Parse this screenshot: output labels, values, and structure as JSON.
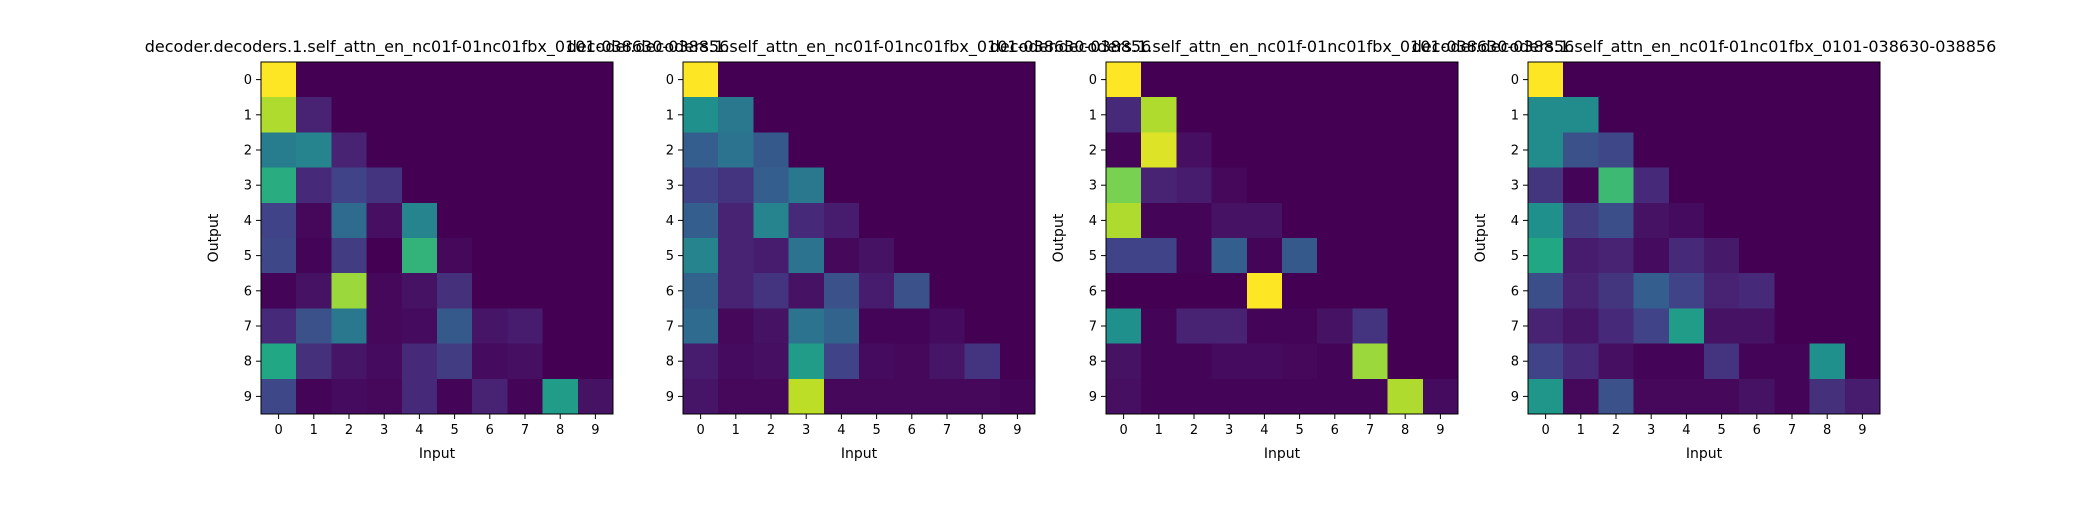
{
  "figure": {
    "panel_titles": [
      "decoder.decoders.1.self_attn_en_nc01f-01nc01fbx_0101-038630-038856",
      "decoder.decoders.1.self_attn_en_nc01f-01nc01fbx_0101-038630-038856",
      "decoder.decoders.1.self_attn_en_nc01f-01nc01fbx_0101-038630-038856",
      "decoder.decoders.1.self_attn_en_nc01f-01nc01fbx_0101-038630-038856"
    ]
  },
  "chart_data": [
    {
      "type": "heatmap",
      "title": "decoder.decoders.1.self_attn_en_nc01f-01nc01fbx_0101-038630-038856",
      "xlabel": "Input",
      "ylabel": "Output",
      "x_ticks": [
        "0",
        "1",
        "2",
        "3",
        "4",
        "5",
        "6",
        "7",
        "8",
        "9"
      ],
      "y_ticks": [
        "0",
        "1",
        "2",
        "3",
        "4",
        "5",
        "6",
        "7",
        "8",
        "9"
      ],
      "colormap": "viridis",
      "values": [
        [
          1.0,
          0,
          0,
          0,
          0,
          0,
          0,
          0,
          0,
          0
        ],
        [
          0.88,
          0.1,
          0,
          0,
          0,
          0,
          0,
          0,
          0,
          0
        ],
        [
          0.42,
          0.45,
          0.1,
          0,
          0,
          0,
          0,
          0,
          0,
          0
        ],
        [
          0.62,
          0.12,
          0.2,
          0.15,
          0,
          0,
          0,
          0,
          0,
          0
        ],
        [
          0.2,
          0.02,
          0.35,
          0.04,
          0.45,
          0,
          0,
          0,
          0,
          0
        ],
        [
          0.22,
          0.01,
          0.18,
          0,
          0.65,
          0.02,
          0,
          0,
          0,
          0
        ],
        [
          0.01,
          0.05,
          0.85,
          0.02,
          0.05,
          0.14,
          0,
          0,
          0,
          0
        ],
        [
          0.12,
          0.25,
          0.4,
          0.02,
          0.03,
          0.28,
          0.06,
          0.08,
          0,
          0
        ],
        [
          0.6,
          0.14,
          0.06,
          0.03,
          0.12,
          0.18,
          0.03,
          0.04,
          0,
          0
        ],
        [
          0.22,
          0.01,
          0.03,
          0.02,
          0.12,
          0.01,
          0.1,
          0.01,
          0.55,
          0.05
        ]
      ]
    },
    {
      "type": "heatmap",
      "title": "decoder.decoders.1.self_attn_en_nc01f-01nc01fbx_0101-038630-038856",
      "xlabel": "Input",
      "ylabel": "",
      "x_ticks": [
        "0",
        "1",
        "2",
        "3",
        "4",
        "5",
        "6",
        "7",
        "8",
        "9"
      ],
      "y_ticks": [
        "0",
        "1",
        "2",
        "3",
        "4",
        "5",
        "6",
        "7",
        "8",
        "9"
      ],
      "colormap": "viridis",
      "values": [
        [
          1.0,
          0,
          0,
          0,
          0,
          0,
          0,
          0,
          0,
          0
        ],
        [
          0.5,
          0.4,
          0,
          0,
          0,
          0,
          0,
          0,
          0,
          0
        ],
        [
          0.3,
          0.38,
          0.28,
          0,
          0,
          0,
          0,
          0,
          0,
          0
        ],
        [
          0.2,
          0.15,
          0.3,
          0.4,
          0,
          0,
          0,
          0,
          0,
          0
        ],
        [
          0.3,
          0.1,
          0.45,
          0.12,
          0.08,
          0,
          0,
          0,
          0,
          0
        ],
        [
          0.45,
          0.1,
          0.08,
          0.38,
          0.02,
          0.05,
          0,
          0,
          0,
          0
        ],
        [
          0.32,
          0.1,
          0.15,
          0.05,
          0.25,
          0.08,
          0.25,
          0,
          0,
          0
        ],
        [
          0.35,
          0.02,
          0.05,
          0.38,
          0.32,
          0.01,
          0.01,
          0.03,
          0,
          0
        ],
        [
          0.08,
          0.03,
          0.04,
          0.55,
          0.2,
          0.03,
          0.02,
          0.06,
          0.15,
          0
        ],
        [
          0.06,
          0.02,
          0.02,
          0.9,
          0.02,
          0.02,
          0.02,
          0.02,
          0.02,
          0.01
        ]
      ]
    },
    {
      "type": "heatmap",
      "title": "decoder.decoders.1.self_attn_en_nc01f-01nc01fbx_0101-038630-038856",
      "xlabel": "Input",
      "ylabel": "Output",
      "x_ticks": [
        "0",
        "1",
        "2",
        "3",
        "4",
        "5",
        "6",
        "7",
        "8",
        "9"
      ],
      "y_ticks": [
        "0",
        "1",
        "2",
        "3",
        "4",
        "5",
        "6",
        "7",
        "8",
        "9"
      ],
      "colormap": "viridis",
      "values": [
        [
          1.0,
          0,
          0,
          0,
          0,
          0,
          0,
          0,
          0,
          0
        ],
        [
          0.12,
          0.88,
          0,
          0,
          0,
          0,
          0,
          0,
          0,
          0
        ],
        [
          0.01,
          0.95,
          0.04,
          0,
          0,
          0,
          0,
          0,
          0,
          0
        ],
        [
          0.8,
          0.1,
          0.08,
          0.02,
          0,
          0,
          0,
          0,
          0,
          0
        ],
        [
          0.88,
          0.01,
          0.01,
          0.05,
          0.05,
          0,
          0,
          0,
          0,
          0
        ],
        [
          0.2,
          0.2,
          0.01,
          0.3,
          0.01,
          0.28,
          0,
          0,
          0,
          0
        ],
        [
          0,
          0,
          0,
          0,
          1.0,
          0,
          0,
          0,
          0,
          0
        ],
        [
          0.5,
          0.01,
          0.1,
          0.1,
          0.01,
          0.01,
          0.05,
          0.15,
          0,
          0
        ],
        [
          0.05,
          0.01,
          0.01,
          0.03,
          0.03,
          0.02,
          0.01,
          0.85,
          0,
          0
        ],
        [
          0.04,
          0.01,
          0.01,
          0.01,
          0.01,
          0.01,
          0.01,
          0.01,
          0.88,
          0.03
        ]
      ]
    },
    {
      "type": "heatmap",
      "title": "decoder.decoders.1.self_attn_en_nc01f-01nc01fbx_0101-038630-038856",
      "xlabel": "Input",
      "ylabel": "Output",
      "x_ticks": [
        "0",
        "1",
        "2",
        "3",
        "4",
        "5",
        "6",
        "7",
        "8",
        "9"
      ],
      "y_ticks": [
        "0",
        "1",
        "2",
        "3",
        "4",
        "5",
        "6",
        "7",
        "8",
        "9"
      ],
      "colormap": "viridis",
      "values": [
        [
          1.0,
          0,
          0,
          0,
          0,
          0,
          0,
          0,
          0,
          0
        ],
        [
          0.48,
          0.48,
          0,
          0,
          0,
          0,
          0,
          0,
          0,
          0
        ],
        [
          0.48,
          0.25,
          0.22,
          0,
          0,
          0,
          0,
          0,
          0,
          0
        ],
        [
          0.16,
          0.01,
          0.68,
          0.12,
          0,
          0,
          0,
          0,
          0,
          0
        ],
        [
          0.5,
          0.18,
          0.24,
          0.05,
          0.03,
          0,
          0,
          0,
          0,
          0
        ],
        [
          0.6,
          0.08,
          0.1,
          0.03,
          0.12,
          0.07,
          0,
          0,
          0,
          0
        ],
        [
          0.24,
          0.1,
          0.16,
          0.3,
          0.2,
          0.1,
          0.12,
          0,
          0,
          0
        ],
        [
          0.1,
          0.06,
          0.12,
          0.2,
          0.55,
          0.05,
          0.05,
          0,
          0,
          0
        ],
        [
          0.2,
          0.12,
          0.04,
          0.01,
          0.01,
          0.15,
          0.01,
          0.01,
          0.5,
          0
        ],
        [
          0.52,
          0.02,
          0.25,
          0.02,
          0.02,
          0.02,
          0.05,
          0.01,
          0.14,
          0.08
        ]
      ]
    }
  ]
}
